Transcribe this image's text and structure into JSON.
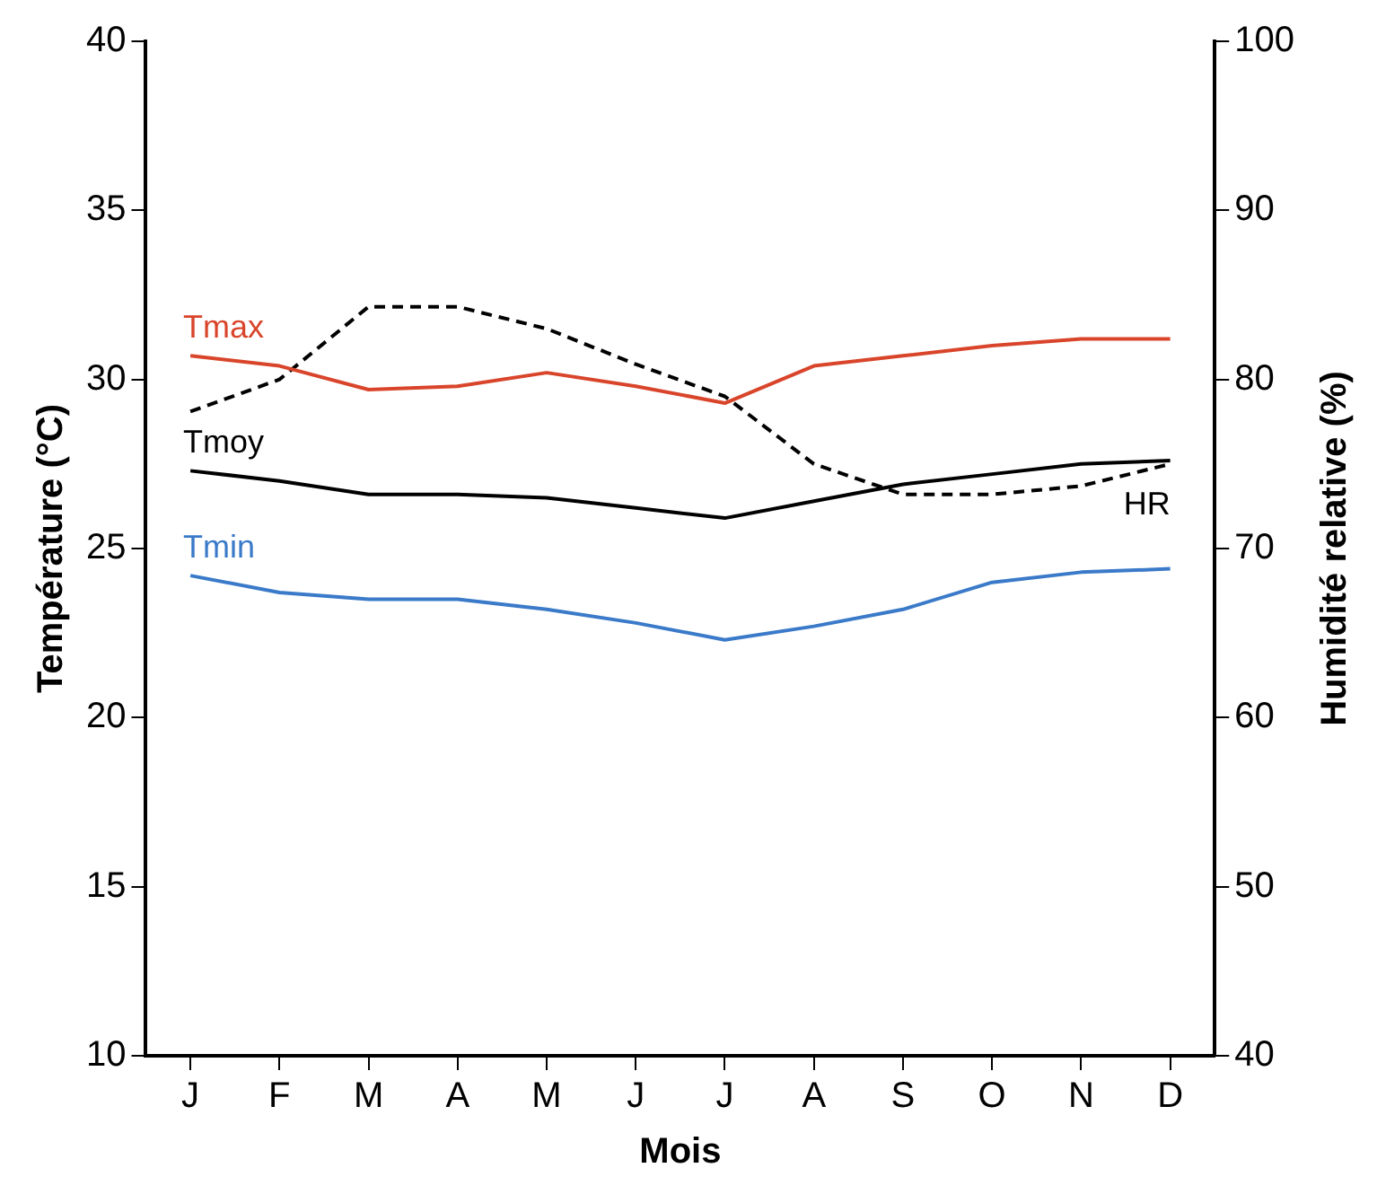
{
  "chart_data": {
    "type": "line",
    "xlabel": "Mois",
    "ylabel": "Température (°C)",
    "y2label": "Humidité relative (%)",
    "categories": [
      "J",
      "F",
      "M",
      "A",
      "M",
      "J",
      "J",
      "A",
      "S",
      "O",
      "N",
      "D"
    ],
    "series": [
      {
        "name": "Tmax",
        "color": "#d9452b",
        "values": [
          30.7,
          30.4,
          29.7,
          29.8,
          30.2,
          29.8,
          29.3,
          30.4,
          30.7,
          31.0,
          31.2,
          31.2
        ]
      },
      {
        "name": "Tmoy",
        "color": "#000000",
        "values": [
          27.3,
          27.0,
          26.6,
          26.6,
          26.5,
          26.2,
          25.9,
          26.4,
          26.9,
          27.2,
          27.5,
          27.6
        ]
      },
      {
        "name": "Tmin",
        "color": "#3a7ac9",
        "values": [
          24.2,
          23.7,
          23.5,
          23.5,
          23.2,
          22.8,
          22.3,
          22.7,
          23.2,
          24.0,
          24.3,
          24.4
        ]
      },
      {
        "name": "HR",
        "color": "#000000",
        "axis": "y2",
        "line_style": "dashed",
        "values": [
          78.1,
          80.0,
          84.3,
          84.3,
          83.0,
          80.9,
          79.0,
          75.0,
          73.2,
          73.2,
          73.7,
          75.0
        ]
      }
    ],
    "ylim": [
      10,
      40
    ],
    "yticks": [
      10,
      15,
      20,
      25,
      30,
      35,
      40
    ],
    "y2lim": [
      40,
      100
    ],
    "y2ticks": [
      40,
      50,
      60,
      70,
      80,
      90,
      100
    ],
    "grid": false,
    "legend": false,
    "marker": "none"
  }
}
